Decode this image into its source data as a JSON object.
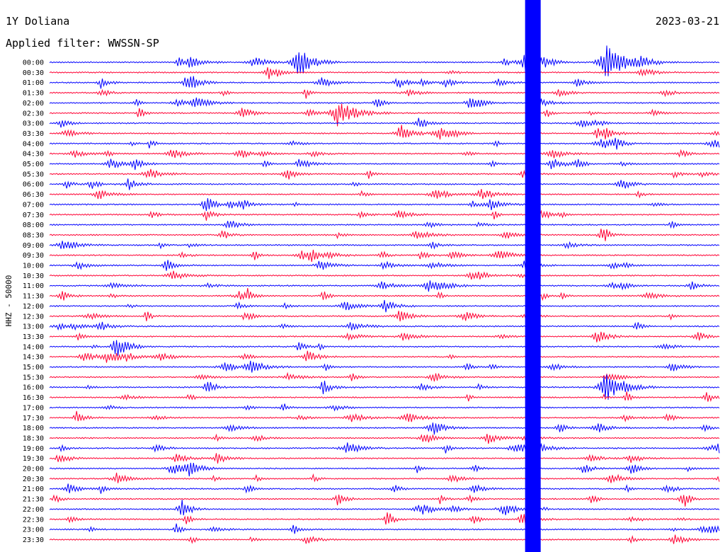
{
  "chart_data": {
    "type": "line",
    "title": "1Y Doliana",
    "date": "2023-03-21",
    "filter_label": "Applied filter: WWSSN-SP",
    "ylabel": "HHZ - 50000",
    "trace_labels": [
      "00:00",
      "00:30",
      "01:00",
      "01:30",
      "02:00",
      "02:30",
      "03:00",
      "03:30",
      "04:00",
      "04:30",
      "05:00",
      "05:30",
      "06:00",
      "06:30",
      "07:00",
      "07:30",
      "08:00",
      "08:30",
      "09:00",
      "09:30",
      "10:00",
      "10:30",
      "11:00",
      "11:30",
      "12:00",
      "12:30",
      "13:00",
      "13:30",
      "14:00",
      "14:30",
      "15:00",
      "15:30",
      "16:00",
      "16:30",
      "17:00",
      "17:30",
      "18:00",
      "18:30",
      "19:00",
      "19:30",
      "20:00",
      "20:30",
      "21:00",
      "21:30",
      "22:00",
      "22:30",
      "23:00",
      "23:30"
    ],
    "colors": {
      "even": "#0000ff",
      "odd": "#ff0033"
    },
    "notable_events": [
      {
        "trace": "00:00",
        "position": 0.37,
        "note": "burst"
      },
      {
        "trace": "00:00",
        "position": 0.71,
        "note": "large saturated signal spanning most traces"
      },
      {
        "trace": "00:00",
        "position": 0.83,
        "note": "large burst"
      },
      {
        "trace": "02:30",
        "position": 0.43,
        "note": "burst"
      },
      {
        "trace": "16:00",
        "position": 0.83,
        "note": "large burst"
      }
    ]
  }
}
